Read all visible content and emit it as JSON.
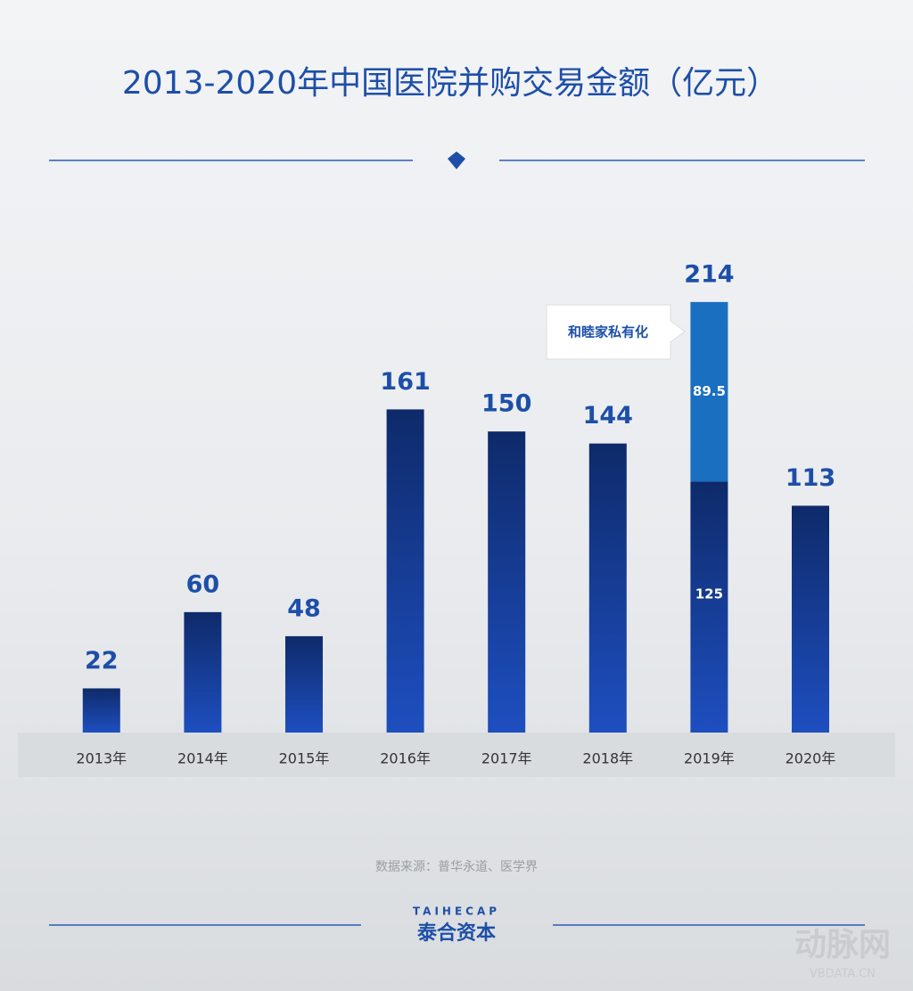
{
  "chart_data": {
    "type": "bar",
    "title": "2013-2020年中国医院并购交易金额（亿元）",
    "categories": [
      "2013年",
      "2014年",
      "2015年",
      "2016年",
      "2017年",
      "2018年",
      "2019年",
      "2020年"
    ],
    "values": [
      22,
      60,
      48,
      161,
      150,
      144,
      125,
      113
    ],
    "stacked_values": [
      null,
      null,
      null,
      null,
      null,
      null,
      89.5,
      null
    ],
    "totals": [
      22,
      60,
      48,
      161,
      150,
      144,
      214,
      113
    ],
    "color": "#1e4fc0",
    "stacked_color": "#1a6fc0",
    "annotation": "和睦家私有化",
    "source": "数据来源：普华永道、医学界",
    "brand_en": "TAIHECAP",
    "brand_cn": "泰合资本",
    "watermark_cn": "动脉网",
    "watermark_en": "VBDATA.CN"
  }
}
